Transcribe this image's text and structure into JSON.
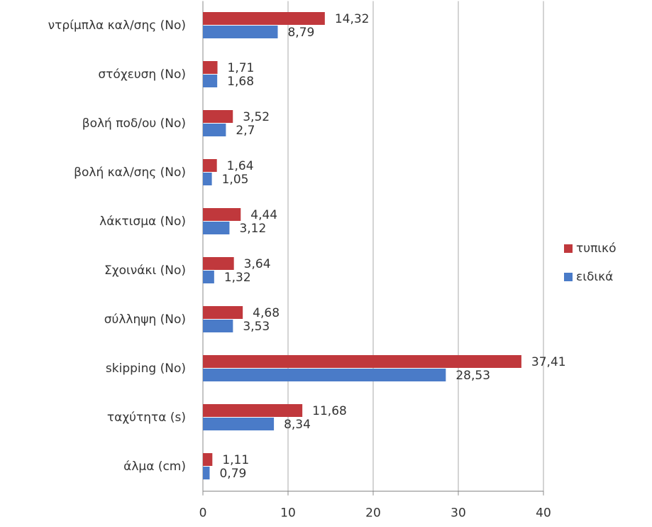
{
  "chart_data": {
    "type": "hbar",
    "categories": [
      "ντρίμπλα καλ/σης (Νο)",
      "στόχευση (Νο)",
      "βολή ποδ/ου (Νο)",
      "βολή καλ/σης (Νο)",
      "λάκτισμα (Νο)",
      "Σχοινάκι (Νο)",
      "σύλληψη (Νο)",
      "skipping (Νο)",
      "ταχύτητα (s)",
      "άλμα (cm)"
    ],
    "series": [
      {
        "name": "τυπικό",
        "color": "#c0383c",
        "values": [
          14.32,
          1.71,
          3.52,
          1.64,
          4.44,
          3.64,
          4.68,
          37.41,
          11.68,
          1.11
        ],
        "value_labels": [
          "14,32",
          "1,71",
          "3,52",
          "1,64",
          "4,44",
          "3,64",
          "4,68",
          "37,41",
          "11,68",
          "1,11"
        ]
      },
      {
        "name": "ειδικά",
        "color": "#4a7bc8",
        "values": [
          8.79,
          1.68,
          2.7,
          1.05,
          3.12,
          1.32,
          3.53,
          28.53,
          8.34,
          0.79
        ],
        "value_labels": [
          "8,79",
          "1,68",
          "2,7",
          "1,05",
          "3,12",
          "1,32",
          "3,53",
          "28,53",
          "8,34",
          "0,79"
        ]
      }
    ],
    "xlim": [
      0,
      40
    ],
    "xticks": [
      0,
      10,
      20,
      30,
      40
    ],
    "grid": true,
    "legend": "right"
  }
}
